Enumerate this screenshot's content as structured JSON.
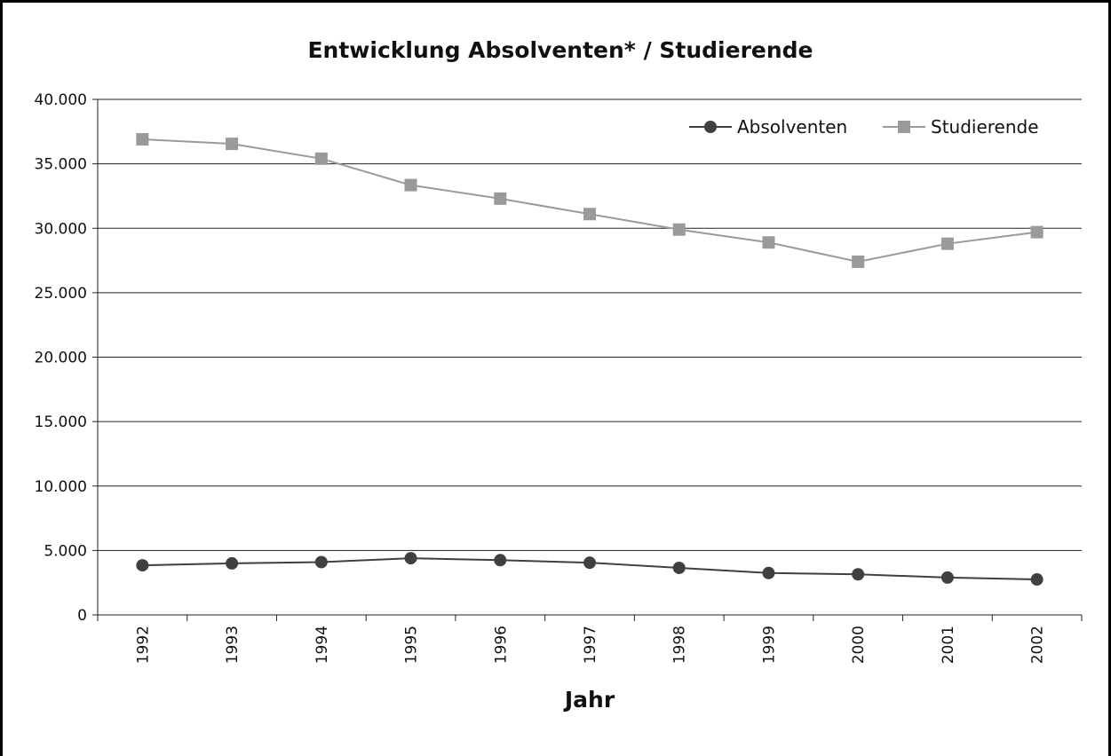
{
  "chart_data": {
    "type": "line",
    "title": "Entwicklung Absolventen* / Studierende",
    "xlabel": "Jahr",
    "ylabel": "",
    "categories": [
      "1992",
      "1993",
      "1994",
      "1995",
      "1996",
      "1997",
      "1998",
      "1999",
      "2000",
      "2001",
      "2002"
    ],
    "ylim": [
      0,
      40000
    ],
    "yticks": [
      0,
      5000,
      10000,
      15000,
      20000,
      25000,
      30000,
      35000,
      40000
    ],
    "ytick_labels": [
      "0",
      "5.000",
      "10.000",
      "15.000",
      "20.000",
      "25.000",
      "30.000",
      "35.000",
      "40.000"
    ],
    "grid": true,
    "legend_position": "top-right",
    "series": [
      {
        "name": "Absolventen",
        "marker": "circle",
        "color": "#404040",
        "values": [
          3850,
          4000,
          4100,
          4400,
          4250,
          4050,
          3650,
          3250,
          3150,
          2900,
          2750
        ]
      },
      {
        "name": "Studierende",
        "marker": "square",
        "color": "#9a9a9a",
        "values": [
          36900,
          36550,
          35400,
          33350,
          32300,
          31100,
          29900,
          28900,
          27400,
          28800,
          29700
        ]
      }
    ]
  }
}
